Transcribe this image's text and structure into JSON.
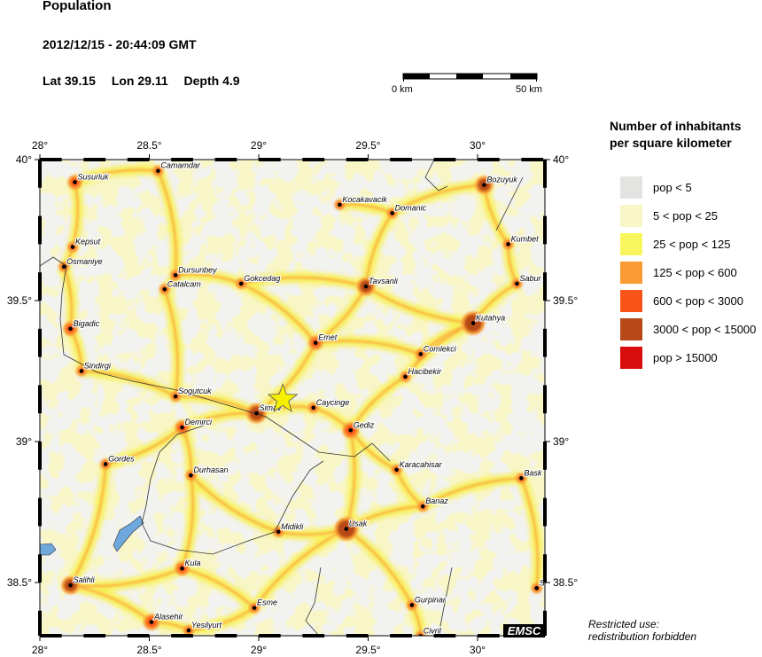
{
  "header": {
    "title": "Population",
    "datetime": "2012/12/15 - 20:44:09 GMT",
    "lat_label": "Lat 39.15",
    "lon_label": "Lon  29.11",
    "depth_label": "Depth  4.9"
  },
  "scale_bar": {
    "start_label": "0 km",
    "end_label": "50 km",
    "length_km": 50
  },
  "map": {
    "lon_range": [
      28,
      30.3
    ],
    "lat_range": [
      38.315,
      40
    ],
    "lon_ticks": [
      "28°",
      "28.5°",
      "29°",
      "29.5°",
      "30°"
    ],
    "lat_ticks_left": [
      "40°",
      "39.5°",
      "39°",
      "38.5°"
    ],
    "lat_ticks_right": [
      "40°",
      "39.5°",
      "39°",
      "38.5°"
    ],
    "epicenter": {
      "lat": 39.15,
      "lon": 29.11,
      "icon": "star-icon",
      "color": "#f5f000"
    },
    "cities": [
      {
        "name": "Susurluk",
        "lon": 28.16,
        "lat": 39.92
      },
      {
        "name": "Camamdar",
        "lon": 28.54,
        "lat": 39.96
      },
      {
        "name": "Kocakavacik",
        "lon": 29.37,
        "lat": 39.84
      },
      {
        "name": "Domanic",
        "lon": 29.61,
        "lat": 39.81
      },
      {
        "name": "Bozuyuk",
        "lon": 30.03,
        "lat": 39.91
      },
      {
        "name": "Kumbet",
        "lon": 30.14,
        "lat": 39.7
      },
      {
        "name": "Kepsut",
        "lon": 28.15,
        "lat": 39.69
      },
      {
        "name": "Osmaniye",
        "lon": 28.11,
        "lat": 39.62
      },
      {
        "name": "Dursunbey",
        "lon": 28.62,
        "lat": 39.59
      },
      {
        "name": "Catalcam",
        "lon": 28.57,
        "lat": 39.54
      },
      {
        "name": "Gokcedag",
        "lon": 28.92,
        "lat": 39.56
      },
      {
        "name": "Tavsanli",
        "lon": 29.49,
        "lat": 39.55
      },
      {
        "name": "Sabur",
        "lon": 30.18,
        "lat": 39.56
      },
      {
        "name": "Kutahya",
        "lon": 29.98,
        "lat": 39.42
      },
      {
        "name": "Bigadic",
        "lon": 28.14,
        "lat": 39.4
      },
      {
        "name": "Emet",
        "lon": 29.26,
        "lat": 39.35
      },
      {
        "name": "Comlekci",
        "lon": 29.74,
        "lat": 39.31
      },
      {
        "name": "Sindirgi",
        "lon": 28.19,
        "lat": 39.25
      },
      {
        "name": "Hacibekir",
        "lon": 29.67,
        "lat": 39.23
      },
      {
        "name": "Sogutcuk",
        "lon": 28.62,
        "lat": 39.16
      },
      {
        "name": "Simav",
        "lon": 28.99,
        "lat": 39.1
      },
      {
        "name": "Caycinge",
        "lon": 29.25,
        "lat": 39.12
      },
      {
        "name": "Gediz",
        "lon": 29.42,
        "lat": 39.04
      },
      {
        "name": "Demirci",
        "lon": 28.65,
        "lat": 39.05
      },
      {
        "name": "Karacahisar",
        "lon": 29.63,
        "lat": 38.9
      },
      {
        "name": "Gordes",
        "lon": 28.3,
        "lat": 38.92
      },
      {
        "name": "Bask",
        "lon": 30.2,
        "lat": 38.87
      },
      {
        "name": "Durhasan",
        "lon": 28.69,
        "lat": 38.88
      },
      {
        "name": "Banaz",
        "lon": 29.75,
        "lat": 38.77
      },
      {
        "name": "Midikli",
        "lon": 29.09,
        "lat": 38.68
      },
      {
        "name": "Usak",
        "lon": 29.4,
        "lat": 38.69
      },
      {
        "name": "Kula",
        "lon": 28.65,
        "lat": 38.55
      },
      {
        "name": "Salihli",
        "lon": 28.14,
        "lat": 38.49
      },
      {
        "name": "Gurpinar",
        "lon": 29.7,
        "lat": 38.42
      },
      {
        "name": "Esme",
        "lon": 28.98,
        "lat": 38.41
      },
      {
        "name": "Alasehir",
        "lon": 28.51,
        "lat": 38.36
      },
      {
        "name": "Yesilyurt",
        "lon": 28.68,
        "lat": 38.33
      },
      {
        "name": "Civril",
        "lon": 29.74,
        "lat": 38.31
      },
      {
        "name": "S",
        "lon": 30.27,
        "lat": 38.48
      }
    ]
  },
  "legend": {
    "title_line1": "Number of inhabitants",
    "title_line2": "per square kilometer",
    "items": [
      {
        "label": "pop < 5",
        "color": "#e3e3e1"
      },
      {
        "label": "5 < pop < 25",
        "color": "#f8f6c6"
      },
      {
        "label": "25 < pop < 125",
        "color": "#f8f55e"
      },
      {
        "label": "125 < pop < 600",
        "color": "#f99a35"
      },
      {
        "label": "600 < pop < 3000",
        "color": "#fb5419"
      },
      {
        "label": "3000 < pop < 15000",
        "color": "#b84818"
      },
      {
        "label": "pop > 15000",
        "color": "#d80d0d"
      }
    ]
  },
  "footer": {
    "line1": "Restricted use:",
    "line2": "redistribution forbidden",
    "logo": "EMSC"
  }
}
